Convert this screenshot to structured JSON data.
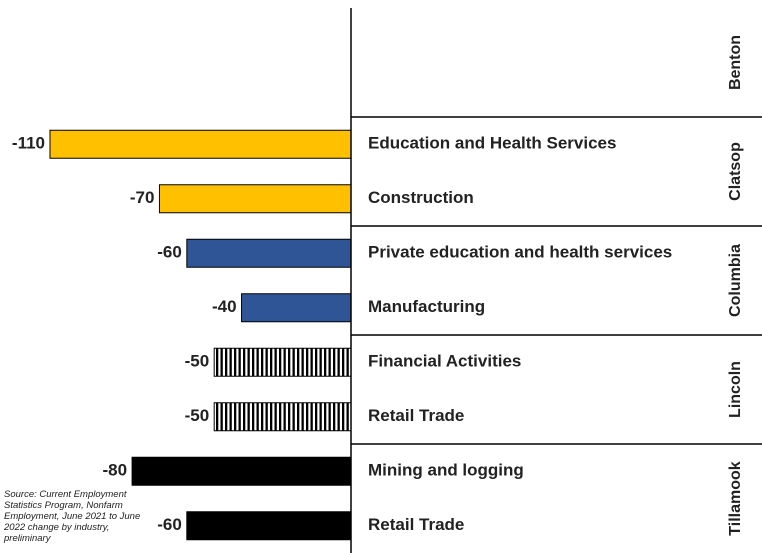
{
  "chart_data": {
    "type": "bar",
    "orientation": "horizontal",
    "xlim": [
      -110,
      0
    ],
    "groups": [
      {
        "name": "Benton",
        "categories": [],
        "values": [],
        "color": "#ffc000"
      },
      {
        "name": "Clatsop",
        "categories": [
          "Education and Health Services",
          "Construction"
        ],
        "values": [
          -110,
          -70
        ],
        "color": "#ffc000"
      },
      {
        "name": "Columbia",
        "categories": [
          "Private education and health services",
          "Manufacturing"
        ],
        "values": [
          -60,
          -40
        ],
        "color": "#2f5597"
      },
      {
        "name": "Lincoln",
        "categories": [
          "Financial Activities",
          "Retail Trade"
        ],
        "values": [
          -50,
          -50
        ],
        "color": "#000000",
        "pattern": "vertical-stripes"
      },
      {
        "name": "Tillamook",
        "categories": [
          "Mining and logging",
          "Retail Trade"
        ],
        "values": [
          -80,
          -60
        ],
        "color": "#000000"
      }
    ],
    "source": "Source: Current Employment Statistics Program, Nonfarm Employment, June 2021 to June 2022 change by industry, preliminary"
  }
}
